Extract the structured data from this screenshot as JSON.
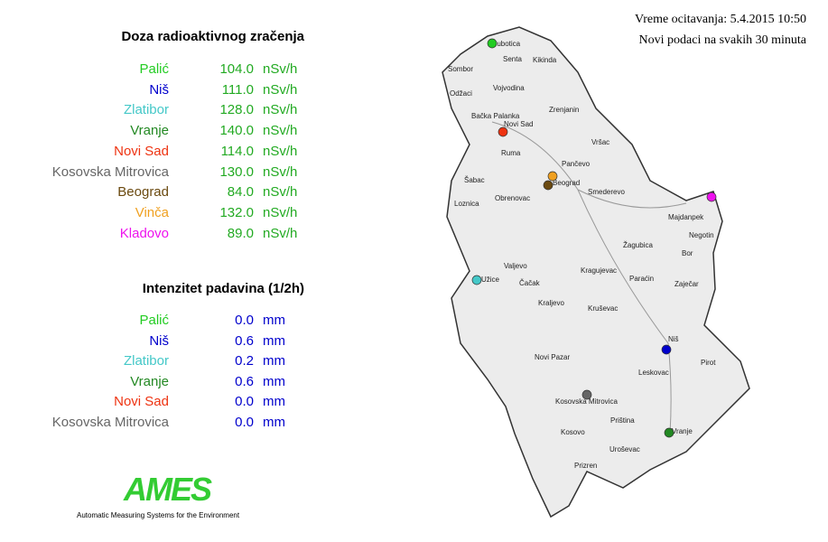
{
  "header": {
    "reading_time": "Vreme ocitavanja: 5.4.2015 10:50",
    "update_note": "Novi podaci na svakih 30 minuta"
  },
  "radiation": {
    "title": "Doza radioaktivnog zračenja",
    "value_color": "#22aa22",
    "rows": [
      {
        "station": "Palić",
        "color": "#22cc22",
        "value": "104.0",
        "unit": "nSv/h"
      },
      {
        "station": "Niš",
        "color": "#0000cc",
        "value": "111.0",
        "unit": "nSv/h"
      },
      {
        "station": "Zlatibor",
        "color": "#44c8c8",
        "value": "128.0",
        "unit": "nSv/h"
      },
      {
        "station": "Vranje",
        "color": "#228822",
        "value": "140.0",
        "unit": "nSv/h"
      },
      {
        "station": "Novi Sad",
        "color": "#ee3311",
        "value": "114.0",
        "unit": "nSv/h"
      },
      {
        "station": "Kosovska Mitrovica",
        "color": "#666666",
        "value": "130.0",
        "unit": "nSv/h"
      },
      {
        "station": "Beograd",
        "color": "#6b4a10",
        "value": "84.0",
        "unit": "nSv/h"
      },
      {
        "station": "Vinča",
        "color": "#f0a020",
        "value": "132.0",
        "unit": "nSv/h"
      },
      {
        "station": "Kladovo",
        "color": "#ee11ee",
        "value": "89.0",
        "unit": "nSv/h"
      }
    ]
  },
  "precipitation": {
    "title": "Intenzitet padavina (1/2h)",
    "value_color": "#0000cc",
    "rows": [
      {
        "station": "Palić",
        "color": "#22cc22",
        "value": "0.0",
        "unit": "mm"
      },
      {
        "station": "Niš",
        "color": "#0000cc",
        "value": "0.6",
        "unit": "mm"
      },
      {
        "station": "Zlatibor",
        "color": "#44c8c8",
        "value": "0.2",
        "unit": "mm"
      },
      {
        "station": "Vranje",
        "color": "#228822",
        "value": "0.6",
        "unit": "mm"
      },
      {
        "station": "Novi Sad",
        "color": "#ee3311",
        "value": "0.0",
        "unit": "mm"
      },
      {
        "station": "Kosovska Mitrovica",
        "color": "#666666",
        "value": "0.0",
        "unit": "mm"
      }
    ]
  },
  "logo": {
    "name": "AMES",
    "caption": "Automatic Measuring Systems for the Environment"
  },
  "map": {
    "labels": [
      "Subotica",
      "Senta",
      "Kikinda",
      "Sombor",
      "Odžaci",
      "Vojvodina",
      "Zrenjanin",
      "Bačka Palanka",
      "Novi Sad",
      "Vršac",
      "Ruma",
      "Pančevo",
      "Beograd",
      "Šabac",
      "Smederevo",
      "Loznica",
      "Obrenovac",
      "Valjevo",
      "Majdanpek",
      "Negotin",
      "Žagubica",
      "Bor",
      "Kragujevac",
      "Paraćin",
      "Zaječar",
      "Užice",
      "Čačak",
      "Kraljevo",
      "Kruševac",
      "Niš",
      "Pirot",
      "Novi Pazar",
      "Leskovac",
      "Kosovska Mitrovica",
      "Priština",
      "Vranje",
      "Kosovo",
      "Uroševac",
      "Prizren"
    ]
  }
}
